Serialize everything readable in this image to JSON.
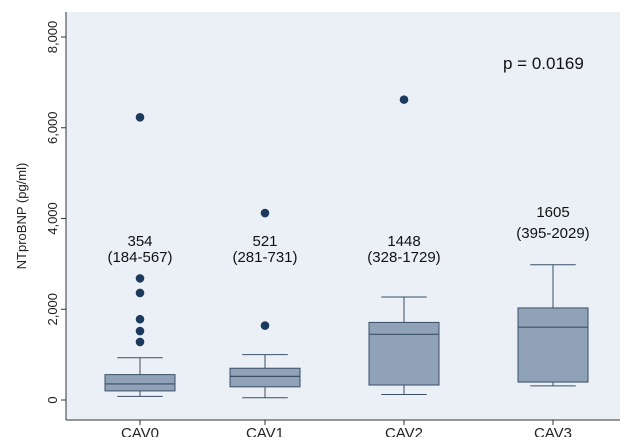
{
  "chart_data": {
    "type": "box",
    "title": "",
    "xlabel": "",
    "ylabel": "NTproBNP (pg/ml)",
    "ylim": [
      -200,
      8300
    ],
    "y_ticks": [
      0,
      2000,
      4000,
      6000,
      8000
    ],
    "y_tick_labels": [
      "0",
      "2,000",
      "4,000",
      "6,000",
      "8,000"
    ],
    "grid": false,
    "categories": [
      "CAV0",
      "CAV1",
      "CAV2",
      "CAV3"
    ],
    "boxes": [
      {
        "category": "CAV0",
        "whisker_low": 80,
        "q1": 200,
        "median": 354,
        "q3": 560,
        "whisker_high": 930,
        "outliers": [
          1280,
          1520,
          1780,
          2360,
          2680,
          6230
        ]
      },
      {
        "category": "CAV1",
        "whisker_low": 50,
        "q1": 290,
        "median": 521,
        "q3": 700,
        "whisker_high": 1000,
        "outliers": [
          1640,
          4120
        ]
      },
      {
        "category": "CAV2",
        "whisker_low": 120,
        "q1": 330,
        "median": 1448,
        "q3": 1710,
        "whisker_high": 2270,
        "outliers": [
          6620
        ]
      },
      {
        "category": "CAV3",
        "whisker_low": 310,
        "q1": 395,
        "median": 1605,
        "q3": 2029,
        "whisker_high": 2980,
        "outliers": []
      }
    ],
    "annotations": [
      {
        "category": "CAV0",
        "line1": "354",
        "line2": "(184-567)"
      },
      {
        "category": "CAV1",
        "line1": "521",
        "line2": "(281-731)"
      },
      {
        "category": "CAV2",
        "line1": "1448",
        "line2": "(328-1729)"
      },
      {
        "category": "CAV3",
        "line1": "1605",
        "line2": "(395-2029)"
      }
    ],
    "p_value_text": "p = 0.0169",
    "colors": {
      "box_fill": "#8fa2b8",
      "box_stroke": "#3b4f66",
      "outlier": "#1c3a5e",
      "plot_bg": "#eaf0f6",
      "axis": "#333333"
    }
  }
}
